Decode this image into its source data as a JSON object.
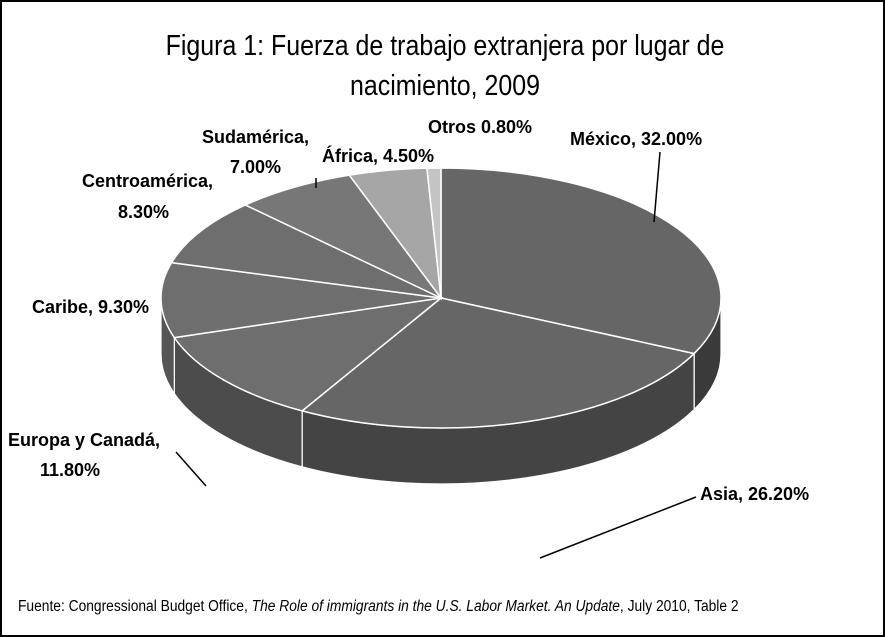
{
  "chart_data": {
    "type": "pie",
    "title": "Figura 1: Fuerza de trabajo extranjera por lugar de nacimiento, 2009",
    "slices": [
      {
        "name": "México",
        "value": 32.0,
        "label": "México, 32.00%"
      },
      {
        "name": "Asia",
        "value": 26.2,
        "label": "Asia, 26.20%"
      },
      {
        "name": "Europa y Canadá",
        "value": 11.8,
        "label": "Europa y Canadá, 11.80%"
      },
      {
        "name": "Caribe",
        "value": 9.3,
        "label": "Caribe, 9.30%"
      },
      {
        "name": "Centroamérica",
        "value": 8.3,
        "label": "Centroamérica, 8.30%"
      },
      {
        "name": "Sudamérica",
        "value": 7.0,
        "label": "Sudamérica, 7.00%"
      },
      {
        "name": "África",
        "value": 4.5,
        "label": "África, 4.50%"
      },
      {
        "name": "Otros",
        "value": 0.8,
        "label": "Otros 0.80%"
      }
    ],
    "legend": "none"
  },
  "source": {
    "prefix": "Fuente: Congressional Budget Office, ",
    "work": "The Role of immigrants in the U.S. Labor Market. An Update",
    "suffix": ", July 2010, Table 2"
  }
}
